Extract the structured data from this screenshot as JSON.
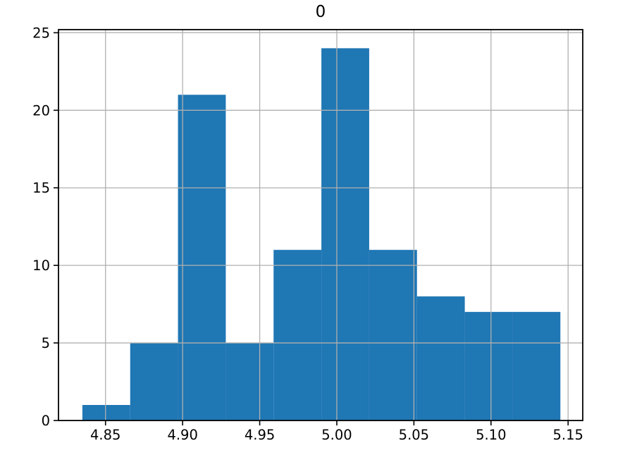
{
  "figure": {
    "title": "0",
    "background": "#ffffff"
  },
  "colors": {
    "bar": "#1f77b4",
    "grid": "#b0b0b0",
    "spine": "#000000",
    "tick": "#000000",
    "text": "#000000"
  },
  "chart_data": {
    "type": "bar",
    "subtype": "histogram",
    "title": "0",
    "xlabel": "",
    "ylabel": "",
    "bin_edges": [
      4.835,
      4.866,
      4.897,
      4.928,
      4.959,
      4.99,
      5.021,
      5.052,
      5.083,
      5.114,
      5.145
    ],
    "counts": [
      1,
      5,
      21,
      5,
      11,
      24,
      11,
      8,
      7,
      7
    ],
    "total_samples": 100,
    "xlim": [
      4.8195,
      5.1595
    ],
    "ylim": [
      0,
      25.2
    ],
    "xticks": [
      4.85,
      4.9,
      4.95,
      5.0,
      5.05,
      5.1,
      5.15
    ],
    "xtick_labels": [
      "4.85",
      "4.90",
      "4.95",
      "5.00",
      "5.05",
      "5.10",
      "5.15"
    ],
    "yticks": [
      0,
      5,
      10,
      15,
      20,
      25
    ],
    "ytick_labels": [
      "0",
      "5",
      "10",
      "15",
      "20",
      "25"
    ],
    "grid": true,
    "grid_above_bars": true,
    "legend": null,
    "bar_color": "#1f77b4",
    "grid_color": "#b0b0b0"
  }
}
